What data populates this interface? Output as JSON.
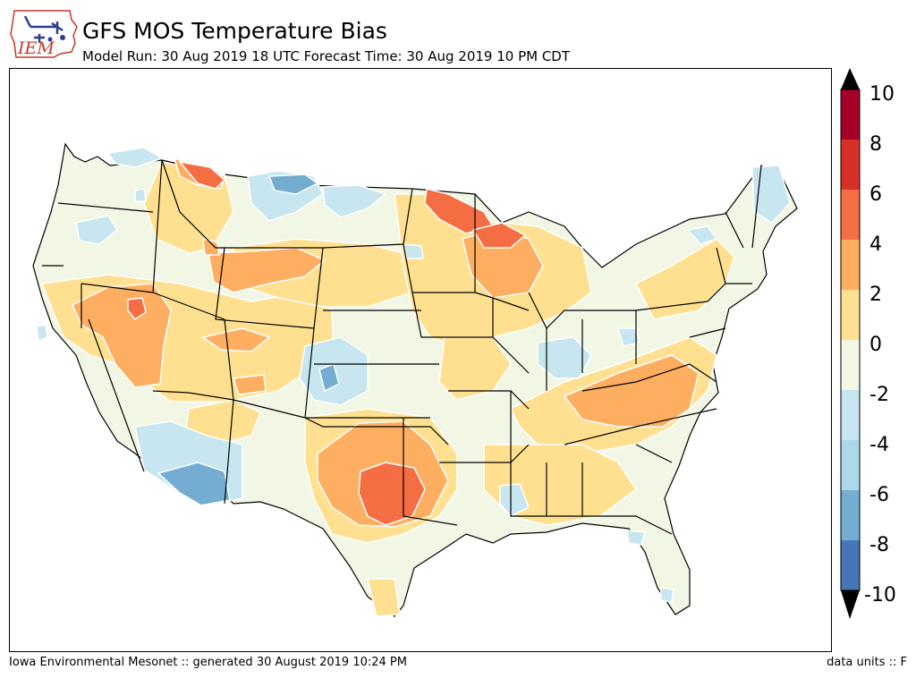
{
  "header": {
    "title": "GFS MOS Temperature Bias",
    "subtitle": "Model Run: 30 Aug 2019 18 UTC Forecast Time: 30 Aug 2019 10 PM CDT",
    "logo_text": "IEM"
  },
  "footer": {
    "left": "Iowa Environmental Mesonet :: generated 30 August 2019 10:24 PM",
    "right": "data units :: F"
  },
  "legend": {
    "ticks": [
      "10",
      "8",
      "6",
      "4",
      "2",
      "0",
      "-2",
      "-4",
      "-6",
      "-8",
      "-10"
    ],
    "colors": [
      "#a50026",
      "#d73027",
      "#f46d43",
      "#fdae61",
      "#fee090",
      "#f1f7e4",
      "#c7e6f0",
      "#abd9e9",
      "#74add1",
      "#4575b4",
      "#313695"
    ],
    "over_color": "#000000",
    "under_color": "#000000"
  },
  "palette": {
    "neutral": "#f1f7e4",
    "slight_warm": "#fee090",
    "warm": "#fdae61",
    "hot": "#f46d43",
    "slight_cool": "#c7e6f0",
    "cool": "#74add1",
    "contour": "#ffffff",
    "border": "#000000"
  }
}
